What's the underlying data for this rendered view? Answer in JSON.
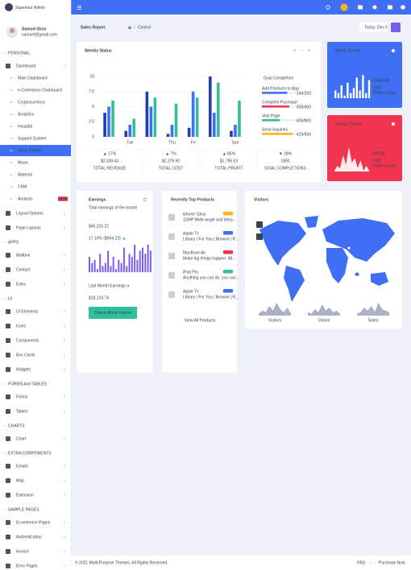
{
  "header": {
    "brand": "Superieur Admin"
  },
  "user": {
    "name": "Samuel Brus",
    "email": "samuel@gmail.com"
  },
  "sidebar": [
    {
      "title": "PERSONAL",
      "items": [
        {
          "label": "Dashboard",
          "children": [
            {
              "label": "Main Dashboard"
            },
            {
              "label": "e-Commerce Dashboard"
            },
            {
              "label": "Cryptocurrency"
            },
            {
              "label": "Analytics"
            },
            {
              "label": "Hospital"
            },
            {
              "label": "Support System"
            },
            {
              "label": "Sales Report",
              "active": true
            },
            {
              "label": "Music"
            },
            {
              "label": "Material"
            },
            {
              "label": "CRM"
            },
            {
              "label": "Analysis",
              "badge": "NEW"
            }
          ]
        },
        {
          "label": "Layout Options"
        },
        {
          "label": "Page Layouts"
        }
      ]
    },
    {
      "title": "APPS",
      "items": [
        {
          "label": "Mailbox"
        },
        {
          "label": "Contact"
        },
        {
          "label": "Extra"
        }
      ]
    },
    {
      "title": "UI",
      "items": [
        {
          "label": "UI Elements"
        },
        {
          "label": "Icons"
        },
        {
          "label": "Components"
        },
        {
          "label": "Box Cards"
        },
        {
          "label": "Widgets"
        }
      ]
    },
    {
      "title": "FORMS And TABLES",
      "items": [
        {
          "label": "Forms"
        },
        {
          "label": "Tables"
        }
      ]
    },
    {
      "title": "CHARTS",
      "items": [
        {
          "label": "Chart"
        }
      ]
    },
    {
      "title": "EXTRA COMPONENTS",
      "items": [
        {
          "label": "Emails"
        },
        {
          "label": "Map"
        },
        {
          "label": "Extension"
        }
      ]
    },
    {
      "title": "SAMPLE PAGES",
      "items": [
        {
          "label": "Ecommerce Pages"
        },
        {
          "label": "Authentication"
        },
        {
          "label": "Invoice"
        },
        {
          "label": "Error Pages"
        }
      ]
    }
  ],
  "page": {
    "title": "Sales Report",
    "breadcrumb": "Control",
    "date_label": "Today:",
    "date": "Dec 5"
  },
  "weekly_status": {
    "title": "Weekly Status",
    "chart_data": {
      "type": "bar",
      "categories": [
        null,
        "Tue",
        null,
        "Thu",
        "Fri",
        null,
        "Sun"
      ],
      "series": [
        {
          "color": "#1f3fae",
          "values": [
            4,
            1,
            7.5,
            0.5,
            1.5,
            10,
            1
          ]
        },
        {
          "color": "#3e6ff4",
          "values": [
            5,
            2,
            5,
            2,
            7.5,
            4,
            2
          ]
        },
        {
          "color": "#2fbf9b",
          "values": [
            6,
            3,
            6.5,
            5.5,
            6.5,
            9,
            6
          ]
        }
      ],
      "ylim": [
        0,
        10
      ],
      "yticks": [
        0,
        2.5,
        5,
        7.5,
        10
      ],
      "grid": true
    },
    "stats": [
      {
        "change": "▲ 17%",
        "color": "#2fbf9b",
        "value": "$3,249.43",
        "label": "TOTAL REVENUE"
      },
      {
        "change": "▲ 7%",
        "color": "#ffb21c",
        "value": "$2,376.90",
        "label": "TOTAL COST"
      },
      {
        "change": "▲ 85%",
        "color": "#3e6ff4",
        "value": "$1,795.53",
        "label": "TOTAL PROFIT"
      },
      {
        "change": "▼ 28%",
        "color": "#f2344f",
        "value": "1800",
        "label": "GOAL COMPLETIONS"
      }
    ],
    "goal": {
      "title": "Goal Completion",
      "items": [
        {
          "label": "Add Products to Bag",
          "progress": "140/200",
          "value": 140,
          "total": 200,
          "color": "#3e6ff4"
        },
        {
          "label": "Complete Purchase",
          "progress": "300/400",
          "value": 300,
          "total": 400,
          "color": "#f2344f"
        },
        {
          "label": "Visit Page",
          "progress": "400/800",
          "value": 400,
          "total": 800,
          "color": "#2fbf9b"
        },
        {
          "label": "Send Inquiries",
          "progress": "425/500",
          "value": 425,
          "total": 500,
          "color": "#ffb21c"
        }
      ]
    }
  },
  "cities": [
    {
      "location": "Miami, Florida",
      "value": 41458245,
      "currency": "USD",
      "caption": "Today's sales",
      "color": "#3e6ff4",
      "bars": [
        3,
        2,
        5,
        1,
        6,
        2,
        4,
        8,
        3,
        9,
        2,
        7
      ]
    },
    {
      "location": "Tampa, Florida",
      "value": 458185,
      "currency": "USD",
      "caption": "Today's sales",
      "color": "#f2344f",
      "spark": [
        0,
        2,
        1,
        6,
        2,
        9,
        3,
        5,
        1,
        4,
        0,
        2,
        0
      ]
    }
  ],
  "earnings": {
    "title": "Earnings",
    "subtitle": "Total earnings of the month",
    "amount": "$45,215.22",
    "change": "17.10% ($954.23)",
    "bars": [
      5,
      3,
      4,
      1,
      6,
      2,
      3,
      7,
      2,
      5,
      1,
      4,
      3,
      8,
      2,
      6,
      5,
      9,
      4,
      7,
      8,
      6,
      9,
      7
    ],
    "last_label": "Last Month Earnings",
    "last_amount": "$18,124.74",
    "button": "Check Whole Report"
  },
  "products": {
    "title": "Recently Top Products",
    "items": [
      {
        "name": "iphone 7plus",
        "desc": "12MP Wide-angle and telep...",
        "badge_color": "#ffb21c"
      },
      {
        "name": "Apple Tv",
        "desc": "Library | For You | Browse | R...",
        "badge_color": "#3e6ff4"
      },
      {
        "name": "MacBook Air",
        "desc": "Make big things happen. All...",
        "badge_color": "#f2344f"
      },
      {
        "name": "iPad Pro",
        "desc": "Anything you can do, you can...",
        "badge_color": "#2fbf9b"
      },
      {
        "name": "Apple Tv",
        "desc": "Library | For You | Browse | R...",
        "badge_color": "#3e6ff4"
      }
    ],
    "link": "View All Products"
  },
  "visitors": {
    "title": "Visitors",
    "sparks": [
      {
        "label": "Visitors",
        "values": [
          1,
          3,
          2,
          6,
          3,
          8,
          4,
          2,
          5,
          1
        ]
      },
      {
        "label": "Online",
        "values": [
          2,
          1,
          4,
          2,
          7,
          3,
          5,
          2,
          3,
          1
        ]
      },
      {
        "label": "Sales",
        "values": [
          1,
          2,
          5,
          3,
          6,
          2,
          8,
          4,
          3,
          2
        ]
      }
    ]
  },
  "footer": {
    "copyright": "© 2021 Multi-Purpose Themes. All Rights Reserved.",
    "links": [
      "FAQ",
      "Purchase Now"
    ]
  }
}
